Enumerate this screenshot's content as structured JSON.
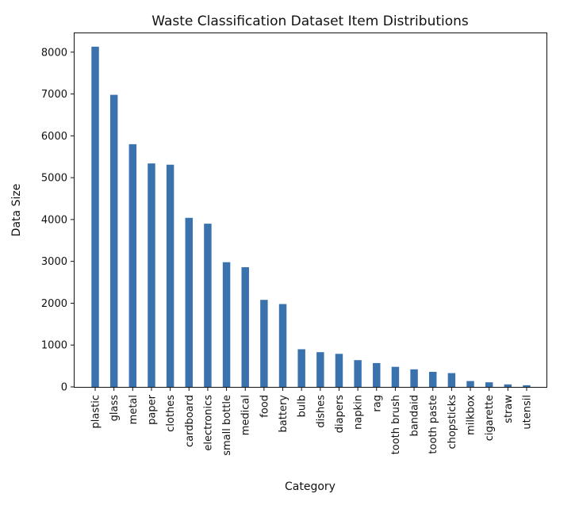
{
  "chart_data": {
    "type": "bar",
    "title": "Waste Classification Dataset Item Distributions",
    "xlabel": "Category",
    "ylabel": "Data Size",
    "ylim": [
      0,
      8450
    ],
    "yticks": [
      0,
      1000,
      2000,
      3000,
      4000,
      5000,
      6000,
      7000,
      8000
    ],
    "grid": false,
    "bar_color": "#3a72ae",
    "categories": [
      "plastic",
      "glass",
      "metal",
      "paper",
      "clothes",
      "cardboard",
      "electronics",
      "small bottle",
      "medical",
      "food",
      "battery",
      "bulb",
      "dishes",
      "diapers",
      "napkin",
      "rag",
      "tooth brush",
      "bandaid",
      "tooth paste",
      "chopsticks",
      "milkbox",
      "cigarette",
      "straw",
      "utensil"
    ],
    "values": [
      8130,
      6980,
      5800,
      5340,
      5310,
      4040,
      3900,
      2980,
      2860,
      2080,
      1980,
      900,
      830,
      790,
      640,
      570,
      480,
      420,
      360,
      330,
      140,
      110,
      60,
      40
    ]
  }
}
